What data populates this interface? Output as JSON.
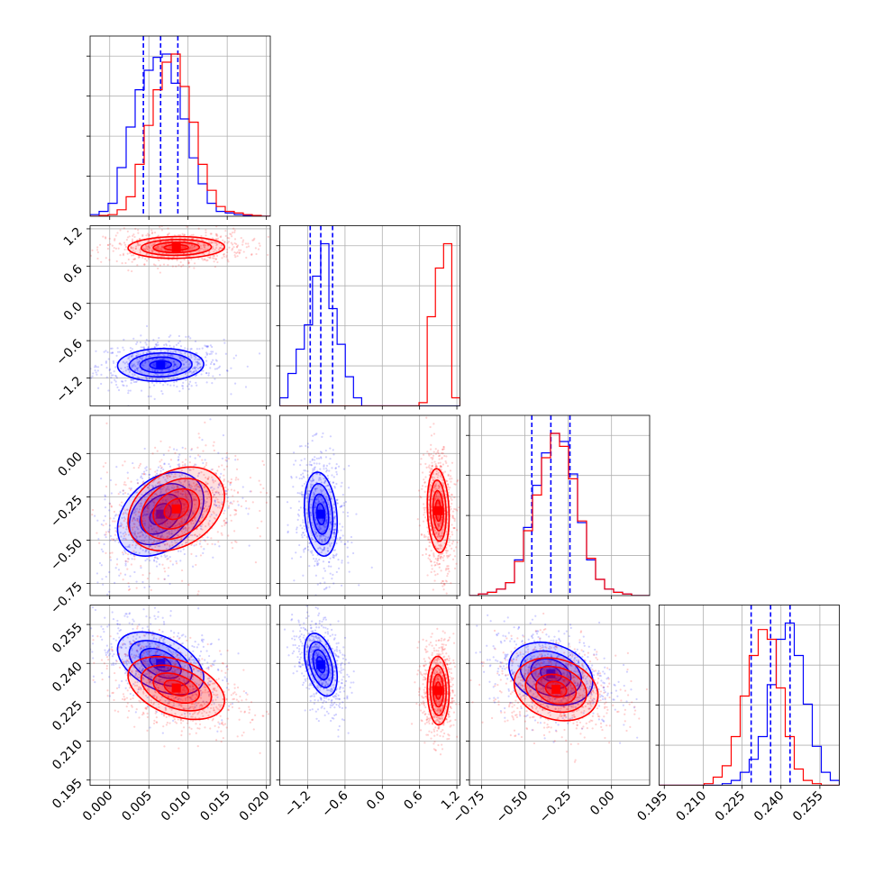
{
  "chart_data": {
    "type": "corner",
    "title": "",
    "grid": true,
    "colors": {
      "blue": "#0000ff",
      "red": "#ff0000"
    },
    "parameters": [
      {
        "label": "",
        "range": [
          -0.0025,
          0.0205
        ],
        "ticks": [
          "0.000",
          "0.005",
          "0.010",
          "0.015",
          "0.020"
        ],
        "tick_values": [
          0.0,
          0.005,
          0.01,
          0.015,
          0.02
        ]
      },
      {
        "label": "",
        "range": [
          -1.65,
          1.25
        ],
        "ticks": [
          "−1.2",
          "−0.6",
          "0.0",
          "0.6",
          "1.2"
        ],
        "tick_values": [
          -1.2,
          -0.6,
          0.0,
          0.6,
          1.2
        ]
      },
      {
        "label": "",
        "range": [
          -0.82,
          0.22
        ],
        "ticks": [
          "−0.75",
          "−0.50",
          "−0.25",
          "0.00"
        ],
        "tick_values": [
          -0.75,
          -0.5,
          -0.25,
          0.0
        ]
      },
      {
        "label": "",
        "range": [
          0.193,
          0.2625
        ],
        "ticks": [
          "0.195",
          "0.210",
          "0.225",
          "0.240",
          "0.255"
        ],
        "tick_values": [
          0.195,
          0.21,
          0.225,
          0.24,
          0.255
        ]
      }
    ],
    "series": [
      {
        "color": "blue",
        "quantiles": [
          [
            0.0043,
            0.0065,
            0.0087
          ],
          [
            -1.16,
            -0.99,
            -0.8
          ],
          [
            -0.46,
            -0.35,
            -0.24
          ],
          [
            0.2285,
            0.236,
            0.2435
          ]
        ],
        "histograms": [
          [
            0.01,
            0.03,
            0.08,
            0.3,
            0.55,
            0.78,
            0.9,
            0.98,
            1.0,
            0.82,
            0.6,
            0.36,
            0.2,
            0.08,
            0.03,
            0.02,
            0.01,
            0.005,
            0,
            0
          ],
          [
            0.05,
            0.2,
            0.35,
            0.5,
            0.8,
            1.0,
            0.6,
            0.38,
            0.18,
            0.05,
            0,
            0,
            0,
            0,
            0,
            0,
            0,
            0,
            0,
            0,
            0,
            0
          ],
          [
            0,
            0.01,
            0.02,
            0.04,
            0.08,
            0.22,
            0.42,
            0.68,
            0.88,
            1.0,
            0.95,
            0.75,
            0.45,
            0.22,
            0.1,
            0.04,
            0.02,
            0.01,
            0,
            0
          ],
          [
            0,
            0,
            0,
            0,
            0,
            0,
            0,
            0.01,
            0.03,
            0.08,
            0.16,
            0.3,
            0.62,
            0.9,
            1.0,
            0.8,
            0.5,
            0.24,
            0.08,
            0.03
          ]
        ],
        "covariances": [
          {
            "pair": [
              1,
              0
            ],
            "mean": [
              0.0065,
              -0.99
            ],
            "sd": [
              0.0025,
              0.12
            ],
            "rho": 0.05
          },
          {
            "pair": [
              2,
              0
            ],
            "mean": [
              0.0065,
              -0.35
            ],
            "sd": [
              0.0025,
              0.11
            ],
            "rho": 0.35
          },
          {
            "pair": [
              2,
              1
            ],
            "mean": [
              -0.99,
              -0.35
            ],
            "sd": [
              0.12,
              0.11
            ],
            "rho": -0.2
          },
          {
            "pair": [
              3,
              0
            ],
            "mean": [
              0.0065,
              0.24
            ],
            "sd": [
              0.0025,
              0.0055
            ],
            "rho": -0.45
          },
          {
            "pair": [
              3,
              1
            ],
            "mean": [
              -0.99,
              0.2395
            ],
            "sd": [
              0.12,
              0.0055
            ],
            "rho": -0.4
          },
          {
            "pair": [
              3,
              2
            ],
            "mean": [
              -0.35,
              0.236
            ],
            "sd": [
              0.11,
              0.0055
            ],
            "rho": -0.25
          }
        ]
      },
      {
        "color": "red",
        "quantiles": [],
        "histograms": [
          [
            0,
            0.005,
            0.01,
            0.04,
            0.12,
            0.32,
            0.56,
            0.78,
            0.95,
            1.0,
            0.8,
            0.58,
            0.32,
            0.16,
            0.06,
            0.03,
            0.02,
            0.01,
            0.005,
            0
          ],
          [
            0,
            0,
            0,
            0,
            0,
            0,
            0,
            0,
            0,
            0,
            0,
            0,
            0,
            0,
            0,
            0,
            0,
            0.02,
            0.55,
            0.85,
            1.0,
            0.05
          ],
          [
            0,
            0.01,
            0.02,
            0.04,
            0.08,
            0.21,
            0.4,
            0.62,
            0.85,
            1.0,
            0.92,
            0.72,
            0.46,
            0.23,
            0.1,
            0.04,
            0.02,
            0.01,
            0,
            0
          ],
          [
            0,
            0,
            0,
            0,
            0,
            0.01,
            0.05,
            0.12,
            0.3,
            0.55,
            0.8,
            0.96,
            0.9,
            0.6,
            0.3,
            0.1,
            0.03,
            0.01,
            0,
            0
          ]
        ],
        "covariances": [
          {
            "pair": [
              1,
              0
            ],
            "mean": [
              0.0085,
              0.9
            ],
            "sd": [
              0.0028,
              0.08
            ],
            "rho": 0.05
          },
          {
            "pair": [
              2,
              0
            ],
            "mean": [
              0.0085,
              -0.32
            ],
            "sd": [
              0.0028,
              0.11
            ],
            "rho": 0.3
          },
          {
            "pair": [
              2,
              1
            ],
            "mean": [
              0.9,
              -0.33
            ],
            "sd": [
              0.08,
              0.11
            ],
            "rho": -0.15
          },
          {
            "pair": [
              3,
              0
            ],
            "mean": [
              0.0085,
              0.2305
            ],
            "sd": [
              0.0028,
              0.0055
            ],
            "rho": -0.4
          },
          {
            "pair": [
              3,
              1
            ],
            "mean": [
              0.9,
              0.2295
            ],
            "sd": [
              0.08,
              0.006
            ],
            "rho": -0.05
          },
          {
            "pair": [
              3,
              2
            ],
            "mean": [
              -0.32,
              0.23
            ],
            "sd": [
              0.11,
              0.0055
            ],
            "rho": -0.2
          }
        ]
      }
    ]
  }
}
